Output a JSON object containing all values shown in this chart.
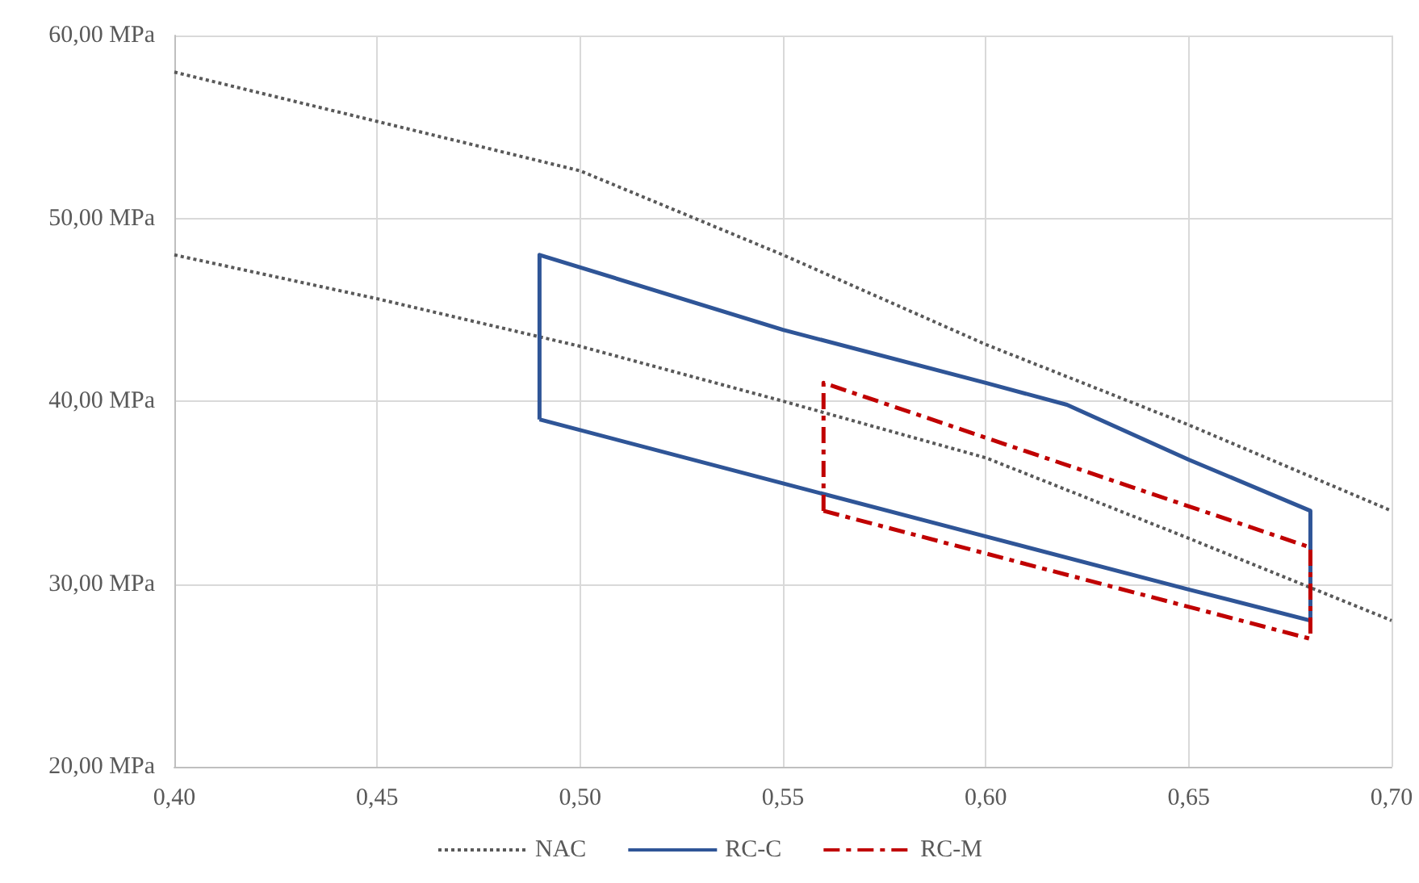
{
  "chart_data": {
    "type": "line",
    "xlim": [
      0.4,
      0.7
    ],
    "ylim": [
      20,
      60
    ],
    "xticks": [
      {
        "value": 0.4,
        "label": "0,40"
      },
      {
        "value": 0.45,
        "label": "0,45"
      },
      {
        "value": 0.5,
        "label": "0,50"
      },
      {
        "value": 0.55,
        "label": "0,55"
      },
      {
        "value": 0.6,
        "label": "0,60"
      },
      {
        "value": 0.65,
        "label": "0,65"
      },
      {
        "value": 0.7,
        "label": "0,70"
      }
    ],
    "yticks": [
      {
        "value": 20,
        "label": "20,00 MPa"
      },
      {
        "value": 30,
        "label": "30,00 MPa"
      },
      {
        "value": 40,
        "label": "40,00 MPa"
      },
      {
        "value": 50,
        "label": "50,00 MPa"
      },
      {
        "value": 60,
        "label": "60,00 MPa"
      }
    ],
    "grid": true,
    "legend": "bottom",
    "marker": "none",
    "series": [
      {
        "name": "NAC",
        "color": "#595959",
        "line_style": "dotted",
        "x": [
          0.4,
          0.45,
          0.5,
          0.55,
          0.6,
          0.65,
          0.7,
          null,
          0.4,
          0.45,
          0.5,
          0.55,
          0.6,
          0.65,
          0.7
        ],
        "values": [
          58,
          55.3,
          52.6,
          48,
          43.1,
          38.7,
          34,
          null,
          48,
          45.6,
          43,
          40,
          36.9,
          32.5,
          28
        ]
      },
      {
        "name": "RC-C",
        "color": "#2f5597",
        "line_style": "solid",
        "x": [
          0.49,
          0.49,
          0.55,
          0.6,
          0.62,
          0.65,
          0.68,
          0.68,
          null,
          0.49,
          0.55,
          0.6,
          0.65,
          0.68
        ],
        "values": [
          39,
          48,
          43.9,
          41,
          39.8,
          36.8,
          34,
          28,
          null,
          39,
          35.5,
          32.6,
          29.7,
          28
        ]
      },
      {
        "name": "RC-M",
        "color": "#c00000",
        "line_style": "dashed",
        "x": [
          0.56,
          0.56,
          0.68,
          0.68,
          null,
          0.56,
          0.68
        ],
        "values": [
          34,
          41,
          32,
          27,
          null,
          34,
          27
        ]
      }
    ]
  }
}
